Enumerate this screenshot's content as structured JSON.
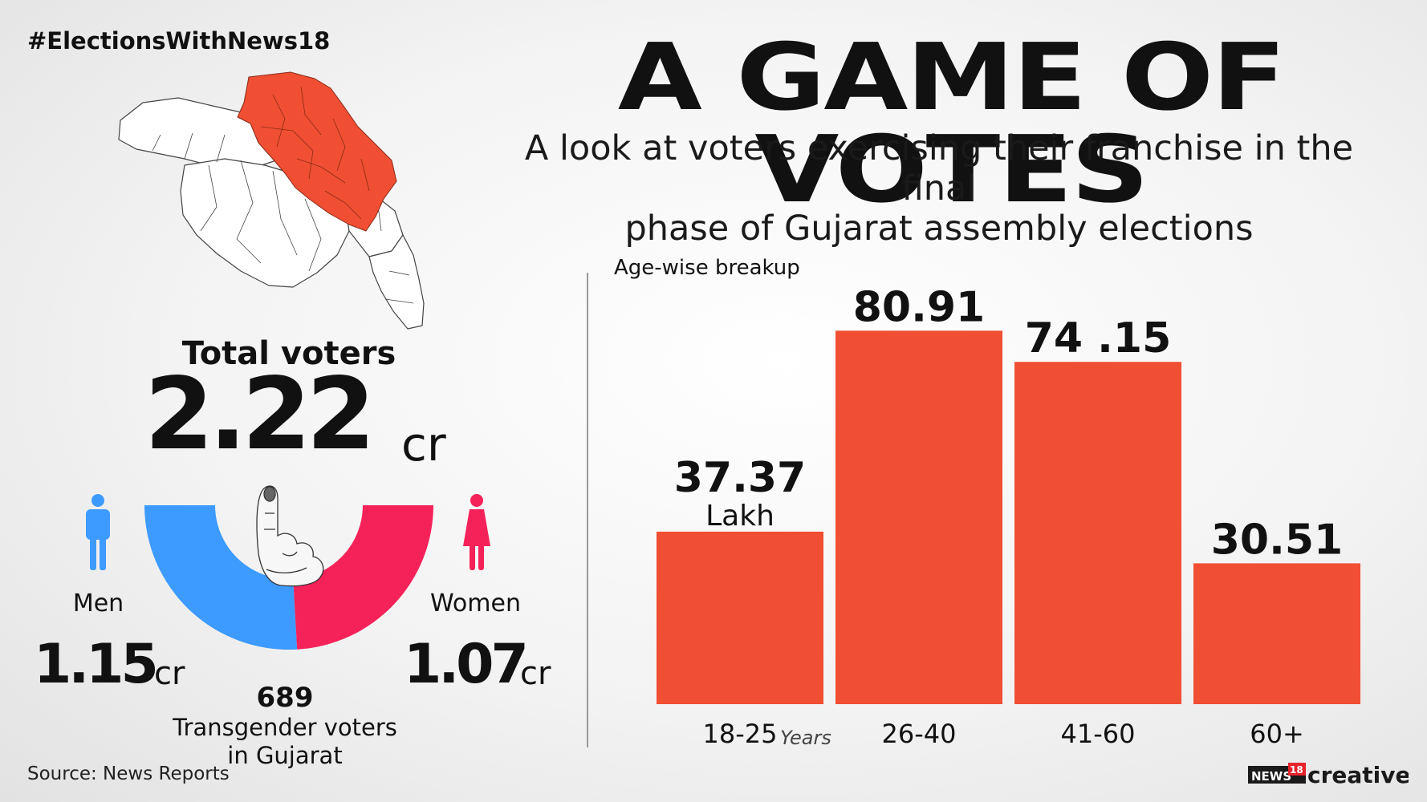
{
  "hashtag": "#ElectionsWithNews18",
  "title": "A GAME OF VOTES",
  "subtitle_line1": "A look at voters exercising their franchise in the final",
  "subtitle_line2": "phase of Gujarat assembly elections",
  "total": {
    "label": "Total voters",
    "value": "2.22",
    "unit": "cr"
  },
  "men": {
    "label": "Men",
    "value": "1.15",
    "unit": "cr",
    "crore": 1.15,
    "color": "#3d9bff"
  },
  "women": {
    "label": "Women",
    "value": "1.07",
    "unit": "cr",
    "crore": 1.07,
    "color": "#f5225a"
  },
  "transgender": {
    "count": "689",
    "label_line1": "Transgender voters",
    "label_line2": "in Gujarat"
  },
  "source": "Source: News Reports",
  "brand": {
    "news": "NEWS",
    "num": "18",
    "creative": "creative"
  },
  "map_highlight_color": "#f04f33",
  "chart_data": {
    "type": "bar",
    "title": "Age-wise breakup",
    "categories": [
      "18-25",
      "26-40",
      "41-60",
      "60+"
    ],
    "values": [
      37.37,
      80.91,
      74.15,
      30.51
    ],
    "value_labels": [
      "37.37",
      "80.91",
      "74 .15",
      "30.51"
    ],
    "unit": "Lakh",
    "x_unit": "Years",
    "bar_color": "#f04f33",
    "grid": false
  }
}
